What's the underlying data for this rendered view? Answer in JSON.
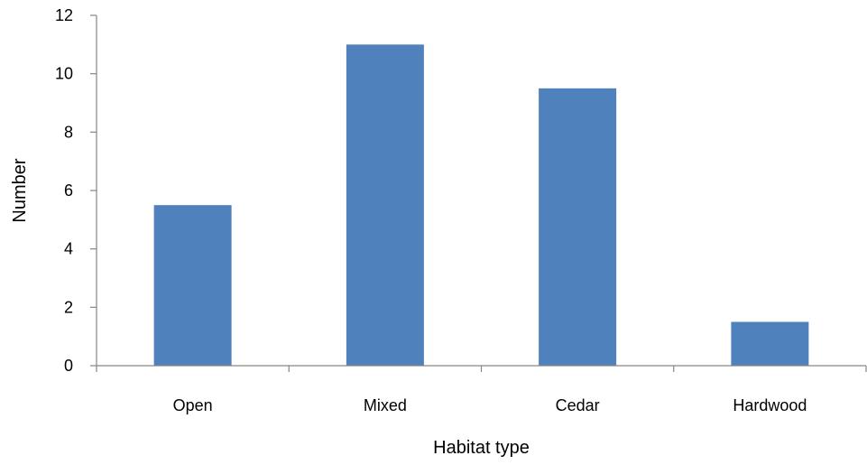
{
  "chart_data": {
    "type": "bar",
    "title": "",
    "xlabel": "Habitat type",
    "ylabel": "Number",
    "categories": [
      "Open",
      "Mixed",
      "Cedar",
      "Hardwood"
    ],
    "values": [
      5.5,
      11,
      9.5,
      1.5
    ],
    "ylim": [
      0,
      12
    ],
    "yticks": [
      0,
      2,
      4,
      6,
      8,
      10,
      12
    ],
    "bar_color": "#4F81BD",
    "axis_color": "#868686",
    "grid": false,
    "legend": "none"
  }
}
